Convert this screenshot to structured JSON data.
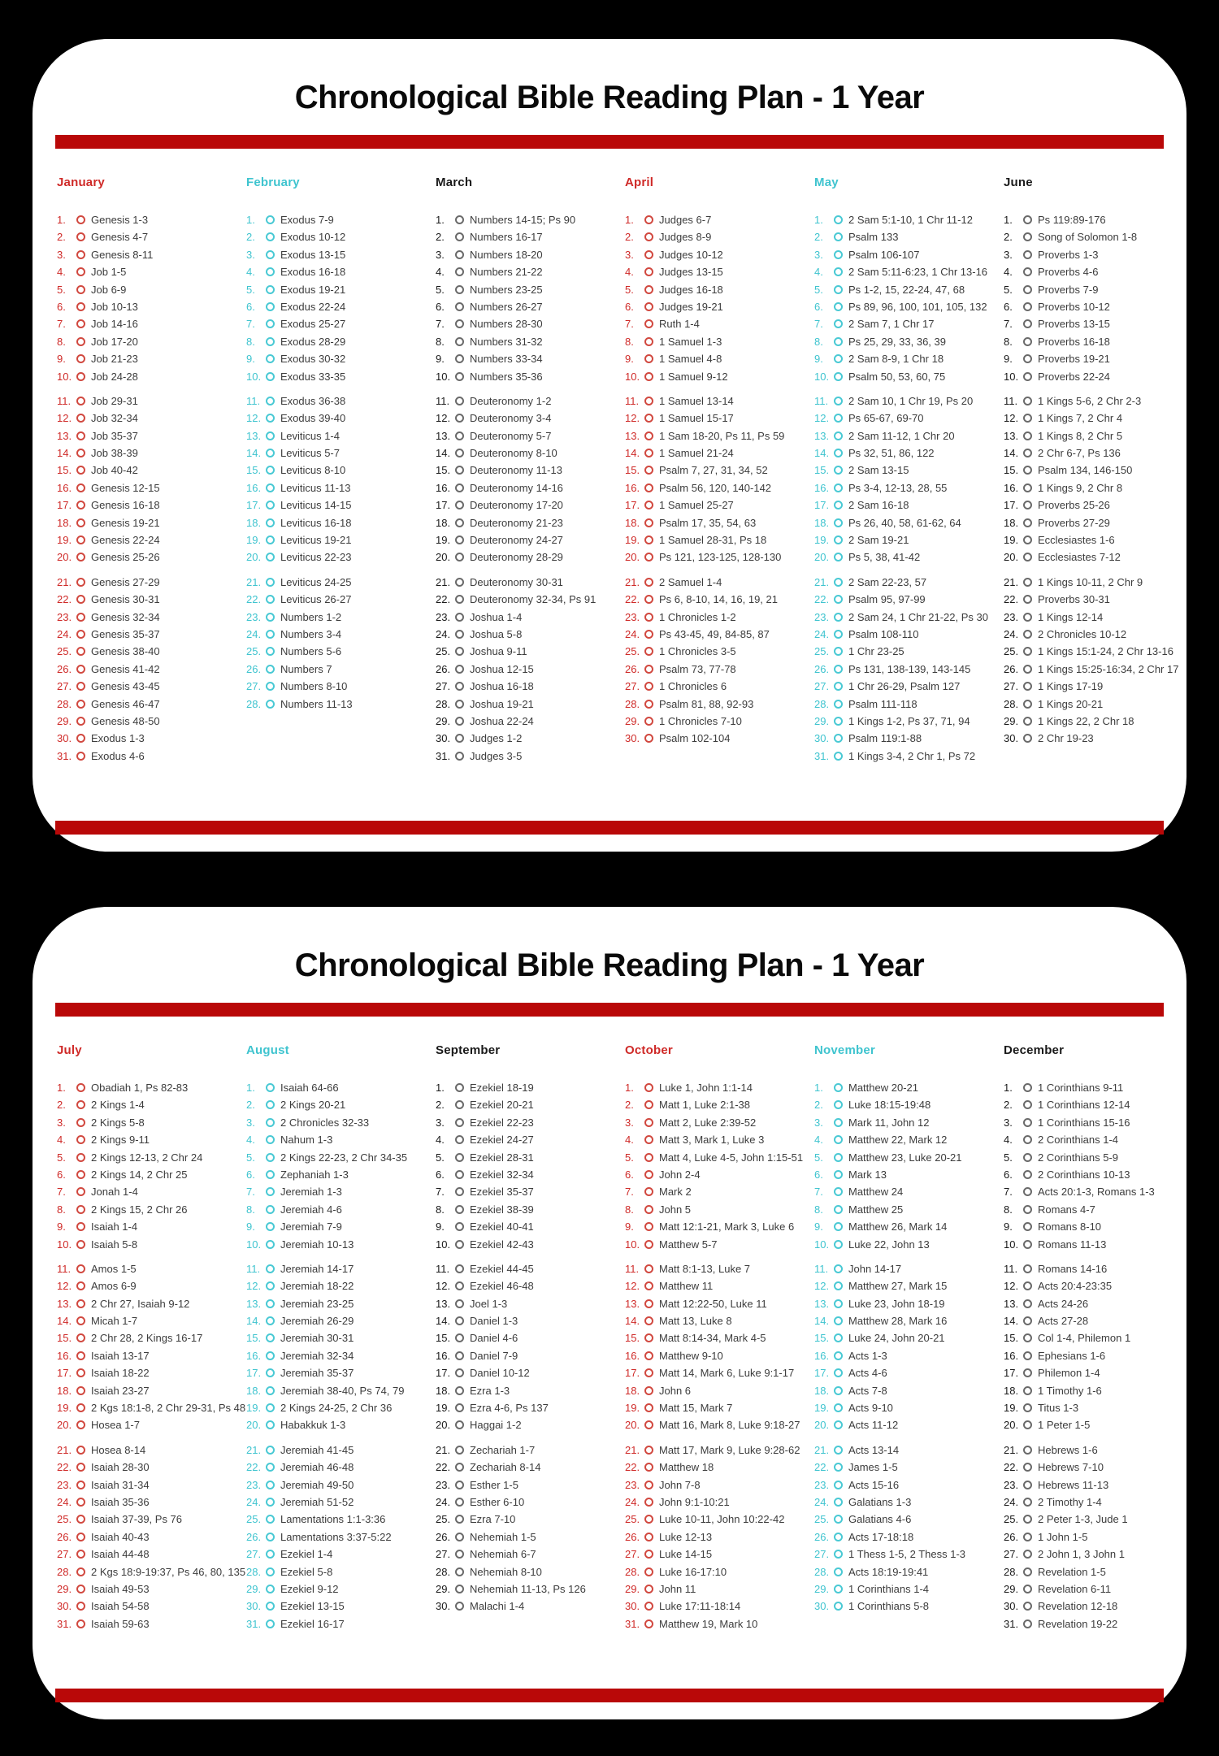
{
  "title": "Chronological Bible Reading Plan - 1 Year",
  "colors": {
    "background": "#000000",
    "panel": "#ffffff",
    "bar_red": "#b90808",
    "month_red": "#cf2a28",
    "month_cyan": "#3fc4cf",
    "month_black": "#1a1a1a",
    "ring_red": "#d1483f",
    "ring_cyan": "#49c9d4",
    "ring_black": "#6a6a6a",
    "day_text": "#3c3c3c"
  },
  "panels": [
    {
      "title": "Chronological Bible Reading Plan - 1 Year",
      "months": [
        {
          "name": "January",
          "color": "red",
          "days": [
            "Genesis 1-3",
            "Genesis 4-7",
            "Genesis 8-11",
            "Job 1-5",
            "Job 6-9",
            "Job 10-13",
            "Job 14-16",
            "Job 17-20",
            "Job 21-23",
            "Job 24-28",
            "Job 29-31",
            "Job 32-34",
            "Job 35-37",
            "Job 38-39",
            "Job 40-42",
            "Genesis 12-15",
            "Genesis 16-18",
            "Genesis 19-21",
            "Genesis 22-24",
            "Genesis 25-26",
            "Genesis 27-29",
            "Genesis 30-31",
            "Genesis 32-34",
            "Genesis 35-37",
            "Genesis 38-40",
            "Genesis 41-42",
            "Genesis 43-45",
            "Genesis 46-47",
            "Genesis 48-50",
            "Exodus 1-3",
            "Exodus 4-6"
          ]
        },
        {
          "name": "February",
          "color": "cyan",
          "days": [
            "Exodus 7-9",
            "Exodus 10-12",
            "Exodus 13-15",
            "Exodus 16-18",
            "Exodus 19-21",
            "Exodus 22-24",
            "Exodus 25-27",
            "Exodus 28-29",
            "Exodus 30-32",
            "Exodus 33-35",
            "Exodus 36-38",
            "Exodus 39-40",
            "Leviticus 1-4",
            "Leviticus 5-7",
            "Leviticus 8-10",
            "Leviticus 11-13",
            "Leviticus 14-15",
            "Leviticus 16-18",
            "Leviticus 19-21",
            "Leviticus 22-23",
            "Leviticus 24-25",
            "Leviticus 26-27",
            "Numbers 1-2",
            "Numbers 3-4",
            "Numbers 5-6",
            "Numbers 7",
            "Numbers 8-10",
            "Numbers 11-13"
          ]
        },
        {
          "name": "March",
          "color": "black",
          "days": [
            "Numbers 14-15; Ps 90",
            "Numbers 16-17",
            "Numbers 18-20",
            "Numbers 21-22",
            "Numbers 23-25",
            "Numbers 26-27",
            "Numbers 28-30",
            "Numbers 31-32",
            "Numbers 33-34",
            "Numbers 35-36",
            "Deuteronomy 1-2",
            "Deuteronomy 3-4",
            "Deuteronomy 5-7",
            "Deuteronomy 8-10",
            "Deuteronomy 11-13",
            "Deuteronomy 14-16",
            "Deuteronomy 17-20",
            "Deuteronomy 21-23",
            "Deuteronomy 24-27",
            "Deuteronomy 28-29",
            "Deuteronomy 30-31",
            "Deuteronomy 32-34, Ps 91",
            "Joshua 1-4",
            "Joshua 5-8",
            "Joshua 9-11",
            "Joshua 12-15",
            "Joshua 16-18",
            "Joshua 19-21",
            "Joshua 22-24",
            "Judges 1-2",
            "Judges 3-5"
          ]
        },
        {
          "name": "April",
          "color": "red",
          "days": [
            "Judges 6-7",
            "Judges 8-9",
            "Judges 10-12",
            "Judges 13-15",
            "Judges 16-18",
            "Judges 19-21",
            "Ruth 1-4",
            "1 Samuel 1-3",
            "1 Samuel 4-8",
            "1 Samuel 9-12",
            "1 Samuel 13-14",
            "1 Samuel 15-17",
            "1 Sam 18-20, Ps 11, Ps 59",
            "1 Samuel 21-24",
            "Psalm 7, 27, 31, 34, 52",
            "Psalm 56, 120, 140-142",
            "1 Samuel 25-27",
            "Psalm 17, 35, 54, 63",
            "1 Samuel 28-31, Ps 18",
            "Ps 121, 123-125, 128-130",
            "2 Samuel 1-4",
            "Ps 6, 8-10, 14, 16, 19, 21",
            "1 Chronicles 1-2",
            "Ps 43-45, 49, 84-85, 87",
            "1 Chronicles 3-5",
            "Psalm 73, 77-78",
            "1 Chronicles 6",
            "Psalm 81, 88, 92-93",
            "1 Chronicles 7-10",
            "Psalm 102-104"
          ]
        },
        {
          "name": "May",
          "color": "cyan",
          "days": [
            "2 Sam 5:1-10, 1 Chr 11-12",
            "Psalm 133",
            "Psalm 106-107",
            "2 Sam 5:11-6:23, 1 Chr 13-16",
            "Ps 1-2, 15, 22-24, 47, 68",
            "Ps 89, 96, 100, 101, 105, 132",
            "2 Sam 7, 1 Chr 17",
            "Ps 25, 29, 33, 36, 39",
            "2 Sam 8-9, 1 Chr 18",
            "Psalm 50, 53, 60, 75",
            "2 Sam 10, 1 Chr 19, Ps 20",
            "Ps 65-67, 69-70",
            "2 Sam 11-12, 1 Chr 20",
            "Ps 32, 51, 86, 122",
            "2 Sam 13-15",
            "Ps 3-4, 12-13, 28, 55",
            "2 Sam 16-18",
            "Ps 26, 40, 58, 61-62, 64",
            "2 Sam 19-21",
            "Ps 5, 38, 41-42",
            "2 Sam 22-23, 57",
            "Psalm 95, 97-99",
            "2 Sam 24, 1 Chr 21-22, Ps 30",
            "Psalm 108-110",
            "1 Chr 23-25",
            "Ps 131, 138-139, 143-145",
            "1 Chr 26-29, Psalm 127",
            "Psalm 111-118",
            "1 Kings 1-2, Ps 37, 71, 94",
            "Psalm 119:1-88",
            "1 Kings 3-4, 2 Chr 1, Ps 72"
          ]
        },
        {
          "name": "June",
          "color": "black",
          "days": [
            "Ps 119:89-176",
            "Song of Solomon 1-8",
            "Proverbs 1-3",
            "Proverbs 4-6",
            "Proverbs 7-9",
            "Proverbs 10-12",
            "Proverbs 13-15",
            "Proverbs 16-18",
            "Proverbs 19-21",
            "Proverbs 22-24",
            "1 Kings 5-6, 2 Chr 2-3",
            "1 Kings 7, 2 Chr 4",
            "1 Kings 8, 2 Chr 5",
            "2 Chr 6-7, Ps 136",
            "Psalm 134, 146-150",
            "1 Kings 9, 2 Chr 8",
            "Proverbs 25-26",
            "Proverbs 27-29",
            "Ecclesiastes 1-6",
            "Ecclesiastes 7-12",
            "1 Kings 10-11, 2 Chr 9",
            "Proverbs 30-31",
            "1 Kings 12-14",
            "2 Chronicles 10-12",
            "1 Kings 15:1-24, 2 Chr 13-16",
            "1 Kings 15:25-16:34, 2 Chr 17",
            "1 Kings 17-19",
            "1 Kings 20-21",
            "1 Kings 22, 2 Chr 18",
            "2 Chr 19-23"
          ]
        }
      ]
    },
    {
      "title": "Chronological Bible Reading Plan - 1 Year",
      "months": [
        {
          "name": "July",
          "color": "red",
          "days": [
            "Obadiah 1, Ps 82-83",
            "2 Kings 1-4",
            "2 Kings 5-8",
            "2 Kings 9-11",
            "2 Kings 12-13, 2 Chr 24",
            "2 Kings 14, 2 Chr 25",
            "Jonah 1-4",
            "2 Kings 15, 2 Chr 26",
            "Isaiah 1-4",
            "Isaiah 5-8",
            "Amos 1-5",
            "Amos 6-9",
            "2 Chr 27, Isaiah 9-12",
            "Micah 1-7",
            "2 Chr 28, 2 Kings 16-17",
            "Isaiah 13-17",
            "Isaiah 18-22",
            "Isaiah 23-27",
            "2 Kgs 18:1-8, 2 Chr 29-31, Ps 48",
            "Hosea 1-7",
            "Hosea 8-14",
            "Isaiah 28-30",
            "Isaiah 31-34",
            "Isaiah 35-36",
            "Isaiah 37-39, Ps 76",
            "Isaiah 40-43",
            "Isaiah 44-48",
            "2 Kgs 18:9-19:37, Ps 46, 80, 135",
            "Isaiah 49-53",
            "Isaiah 54-58",
            "Isaiah 59-63"
          ]
        },
        {
          "name": "August",
          "color": "cyan",
          "days": [
            "Isaiah 64-66",
            "2 Kings 20-21",
            "2 Chronicles 32-33",
            "Nahum 1-3",
            "2 Kings 22-23, 2 Chr 34-35",
            "Zephaniah 1-3",
            "Jeremiah 1-3",
            "Jeremiah 4-6",
            "Jeremiah 7-9",
            "Jeremiah 10-13",
            "Jeremiah 14-17",
            "Jeremiah 18-22",
            "Jeremiah 23-25",
            "Jeremiah 26-29",
            "Jeremiah 30-31",
            "Jeremiah 32-34",
            "Jeremiah 35-37",
            "Jeremiah 38-40, Ps 74, 79",
            "2 Kings 24-25, 2 Chr 36",
            "Habakkuk 1-3",
            "Jeremiah 41-45",
            "Jeremiah 46-48",
            "Jeremiah 49-50",
            "Jeremiah 51-52",
            "Lamentations 1:1-3:36",
            "Lamentations 3:37-5:22",
            "Ezekiel 1-4",
            "Ezekiel 5-8",
            "Ezekiel 9-12",
            "Ezekiel 13-15",
            "Ezekiel 16-17"
          ]
        },
        {
          "name": "September",
          "color": "black",
          "days": [
            "Ezekiel 18-19",
            "Ezekiel 20-21",
            "Ezekiel 22-23",
            "Ezekiel 24-27",
            "Ezekiel 28-31",
            "Ezekiel 32-34",
            "Ezekiel 35-37",
            "Ezekiel 38-39",
            "Ezekiel 40-41",
            "Ezekiel 42-43",
            "Ezekiel 44-45",
            "Ezekiel 46-48",
            "Joel 1-3",
            "Daniel 1-3",
            "Daniel 4-6",
            "Daniel 7-9",
            "Daniel 10-12",
            "Ezra 1-3",
            "Ezra 4-6, Ps 137",
            "Haggai 1-2",
            "Zechariah 1-7",
            "Zechariah 8-14",
            "Esther 1-5",
            "Esther 6-10",
            "Ezra 7-10",
            "Nehemiah 1-5",
            "Nehemiah 6-7",
            "Nehemiah 8-10",
            "Nehemiah 11-13, Ps 126",
            "Malachi 1-4"
          ]
        },
        {
          "name": "October",
          "color": "red",
          "days": [
            "Luke 1, John 1:1-14",
            "Matt 1, Luke 2:1-38",
            "Matt 2, Luke 2:39-52",
            "Matt 3, Mark 1, Luke 3",
            "Matt 4, Luke 4-5, John 1:15-51",
            "John 2-4",
            "Mark 2",
            "John 5",
            "Matt 12:1-21, Mark 3, Luke 6",
            "Matthew 5-7",
            "Matt 8:1-13, Luke 7",
            "Matthew 11",
            "Matt 12:22-50, Luke 11",
            "Matt 13, Luke 8",
            "Matt 8:14-34, Mark 4-5",
            "Matthew 9-10",
            "Matt 14, Mark 6, Luke 9:1-17",
            "John 6",
            "Matt 15, Mark 7",
            "Matt 16, Mark 8, Luke 9:18-27",
            "Matt 17, Mark 9, Luke 9:28-62",
            "Matthew 18",
            "John 7-8",
            "John 9:1-10:21",
            "Luke 10-11, John 10:22-42",
            "Luke 12-13",
            "Luke 14-15",
            "Luke 16-17:10",
            "John 11",
            "Luke 17:11-18:14",
            "Matthew 19, Mark 10"
          ]
        },
        {
          "name": "November",
          "color": "cyan",
          "days": [
            "Matthew 20-21",
            "Luke 18:15-19:48",
            "Mark 11, John 12",
            "Matthew 22, Mark 12",
            "Matthew 23, Luke 20-21",
            "Mark 13",
            "Matthew 24",
            "Matthew 25",
            "Matthew 26, Mark 14",
            "Luke 22, John 13",
            "John 14-17",
            "Matthew 27, Mark 15",
            "Luke 23, John 18-19",
            "Matthew 28, Mark 16",
            "Luke 24, John 20-21",
            "Acts 1-3",
            "Acts 4-6",
            "Acts 7-8",
            "Acts 9-10",
            "Acts 11-12",
            "Acts 13-14",
            "James 1-5",
            "Acts 15-16",
            "Galatians 1-3",
            "Galatians 4-6",
            "Acts 17-18:18",
            "1 Thess 1-5, 2 Thess 1-3",
            "Acts 18:19-19:41",
            "1 Corinthians 1-4",
            "1 Corinthians 5-8"
          ]
        },
        {
          "name": "December",
          "color": "black",
          "days": [
            "1 Corinthians 9-11",
            "1 Corinthians 12-14",
            "1 Corinthians 15-16",
            "2 Corinthians 1-4",
            "2 Corinthians 5-9",
            "2 Corinthians 10-13",
            "Acts 20:1-3, Romans 1-3",
            "Romans 4-7",
            "Romans 8-10",
            "Romans 11-13",
            "Romans 14-16",
            "Acts 20:4-23:35",
            "Acts 24-26",
            "Acts 27-28",
            "Col 1-4, Philemon 1",
            "Ephesians 1-6",
            "Philemon 1-4",
            "1 Timothy 1-6",
            "Titus 1-3",
            "1 Peter 1-5",
            "Hebrews 1-6",
            "Hebrews 7-10",
            "Hebrews 11-13",
            "2 Timothy 1-4",
            "2 Peter 1-3, Jude 1",
            "1 John 1-5",
            "2 John 1, 3 John 1",
            "Revelation 1-5",
            "Revelation 6-11",
            "Revelation 12-18",
            "Revelation 19-22"
          ]
        }
      ]
    }
  ]
}
